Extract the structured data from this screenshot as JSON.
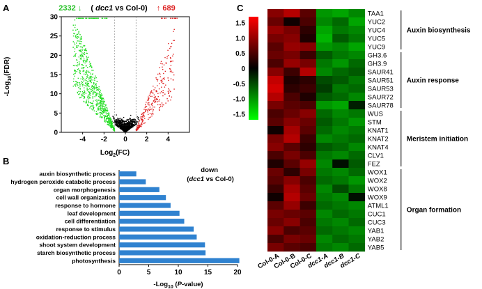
{
  "figure": {
    "panels": [
      "A",
      "B",
      "C"
    ]
  },
  "chart_data": [
    {
      "panel": "A",
      "type": "scatter",
      "title_parts": [
        "(",
        "dcc1",
        " vs Col-0)"
      ],
      "down_count": "2332",
      "down_arrow": "↓",
      "up_count": "689",
      "up_arrow": "↑",
      "xlabel": "Log2(FC)",
      "xlabel_parts": [
        "Log",
        "2",
        "(FC)"
      ],
      "ylabel": "-Log10(FDR)",
      "ylabel_parts": [
        "-Log",
        "10",
        "(FDR)"
      ],
      "xlim": [
        -6,
        6
      ],
      "ylim": [
        0,
        30
      ],
      "xticks": [
        -4,
        -2,
        0,
        2,
        4
      ],
      "yticks": [
        0,
        5,
        10,
        15,
        20,
        25,
        30
      ],
      "fc_threshold": [
        -1,
        1
      ],
      "colors": {
        "down": "#22dd22",
        "up": "#e02020",
        "ns": "#000000"
      }
    },
    {
      "panel": "B",
      "type": "bar",
      "orientation": "horizontal",
      "legend_parts": [
        "down",
        "(",
        "dcc1",
        " vs Col-0)"
      ],
      "xlabel": "-Log10 (P-value)",
      "xlabel_parts": [
        "-Log",
        "10",
        " (",
        "P",
        "-value)"
      ],
      "xlim": [
        0,
        20
      ],
      "xticks": [
        0,
        5,
        10,
        15,
        20
      ],
      "bar_color": "#2f82d0",
      "categories": [
        "auxin biosynthetic process",
        "hydrogen peroxide catabolic process",
        "organ morphogenesis",
        "cell wall organization",
        "response to hormone",
        "leaf development",
        "cell differentiation",
        "response to stimulus",
        "oxidation-reduction process",
        "shoot system development",
        "starch biosynthetic process",
        "photosynthesis"
      ],
      "values": [
        2.9,
        4.5,
        6.8,
        7.9,
        8.7,
        10.2,
        11.0,
        12.6,
        13.1,
        14.5,
        14.6,
        20.3
      ]
    },
    {
      "panel": "C",
      "type": "heatmap",
      "columns": [
        "Col-0-A",
        "Col-0-B",
        "Col-0-C",
        "dcc1-A",
        "dcc1-B",
        "dcc1-C"
      ],
      "columns_italic": [
        false,
        false,
        false,
        true,
        true,
        true
      ],
      "rows": [
        "TAA1",
        "YUC2",
        "YUC4",
        "YUC5",
        "YUC9",
        "GH3.6",
        "GH3.9",
        "SAUR41",
        "SAUR51",
        "SAUR53",
        "SAUR72",
        "SAUR78",
        "WUS",
        "STM",
        "KNAT1",
        "KNAT2",
        "KNAT4",
        "CLV1",
        "FEZ",
        "WOX1",
        "WOX2",
        "WOX8",
        "WOX9",
        "ATML1",
        "CUC1",
        "CUC3",
        "YAB1",
        "YAB2",
        "YAB5"
      ],
      "groups": [
        {
          "label": "Auxin biosynthesis",
          "start": 0,
          "end": 4
        },
        {
          "label": "Auxin response",
          "start": 5,
          "end": 11
        },
        {
          "label": "Meristem initiation",
          "start": 12,
          "end": 18
        },
        {
          "label": "Organ formation",
          "start": 19,
          "end": 28
        }
      ],
      "colorbar_ticks": [
        "1.5",
        "1.0",
        "0.5",
        "0",
        "-0.5",
        "-1.0",
        "-1.5"
      ],
      "colorbar_values": [
        1.5,
        1.0,
        0.5,
        0,
        -0.5,
        -1.0,
        -1.5
      ],
      "color_range": [
        -1.7,
        1.7
      ],
      "colors": {
        "high": "#ff0000",
        "mid": "#000000",
        "low": "#00ff00"
      },
      "values": [
        [
          0.9,
          1.2,
          0.6,
          -1.0,
          -1.1,
          -0.9
        ],
        [
          0.7,
          0.1,
          0.5,
          -0.9,
          -0.7,
          -1.1
        ],
        [
          1.0,
          0.8,
          0.3,
          -1.1,
          -0.8,
          -0.9
        ],
        [
          0.8,
          0.9,
          0.2,
          -1.2,
          -0.6,
          -0.8
        ],
        [
          0.6,
          1.0,
          0.9,
          -1.0,
          -0.9,
          -1.1
        ],
        [
          0.7,
          0.8,
          0.4,
          -0.6,
          -0.8,
          -0.9
        ],
        [
          0.5,
          1.0,
          0.8,
          -0.8,
          -1.0,
          -0.7
        ],
        [
          0.9,
          0.4,
          1.2,
          -0.9,
          -0.7,
          -0.6
        ],
        [
          1.3,
          0.2,
          0.3,
          -0.5,
          -0.6,
          -0.8
        ],
        [
          1.4,
          0.3,
          0.4,
          -0.4,
          -0.8,
          -0.7
        ],
        [
          1.2,
          0.5,
          0.2,
          -0.6,
          -0.7,
          -0.9
        ],
        [
          0.8,
          0.6,
          0.5,
          -1.0,
          -1.1,
          -0.2
        ],
        [
          0.5,
          0.7,
          0.9,
          -0.7,
          -0.9,
          -0.8
        ],
        [
          0.6,
          0.9,
          0.7,
          -0.6,
          -0.8,
          -1.0
        ],
        [
          0.1,
          1.1,
          0.6,
          -0.7,
          -0.9,
          -0.8
        ],
        [
          0.8,
          1.2,
          0.4,
          -0.9,
          -0.8,
          -0.7
        ],
        [
          0.9,
          0.6,
          0.3,
          -0.6,
          -0.7,
          -0.9
        ],
        [
          0.5,
          0.8,
          0.5,
          -0.8,
          -0.9,
          -0.7
        ],
        [
          0.2,
          0.6,
          1.0,
          -0.9,
          -0.1,
          -0.6
        ],
        [
          0.7,
          0.3,
          0.8,
          -0.8,
          -0.9,
          -0.7
        ],
        [
          0.6,
          0.9,
          0.5,
          -0.7,
          -0.8,
          -1.0
        ],
        [
          0.4,
          1.1,
          0.6,
          -0.9,
          -0.5,
          -0.8
        ],
        [
          0.1,
          1.2,
          0.7,
          -0.8,
          -0.9,
          -0.1
        ],
        [
          0.6,
          1.0,
          0.4,
          -0.7,
          -0.8,
          -0.9
        ],
        [
          0.8,
          0.7,
          0.6,
          -0.9,
          -0.7,
          -0.8
        ],
        [
          0.7,
          0.9,
          0.5,
          -0.8,
          -0.9,
          -0.7
        ],
        [
          0.9,
          0.5,
          0.6,
          -0.7,
          -0.8,
          -0.9
        ],
        [
          0.5,
          0.8,
          0.7,
          -0.9,
          -0.7,
          -0.8
        ],
        [
          0.8,
          0.6,
          0.5,
          -0.8,
          -0.9,
          -0.7
        ]
      ]
    }
  ]
}
